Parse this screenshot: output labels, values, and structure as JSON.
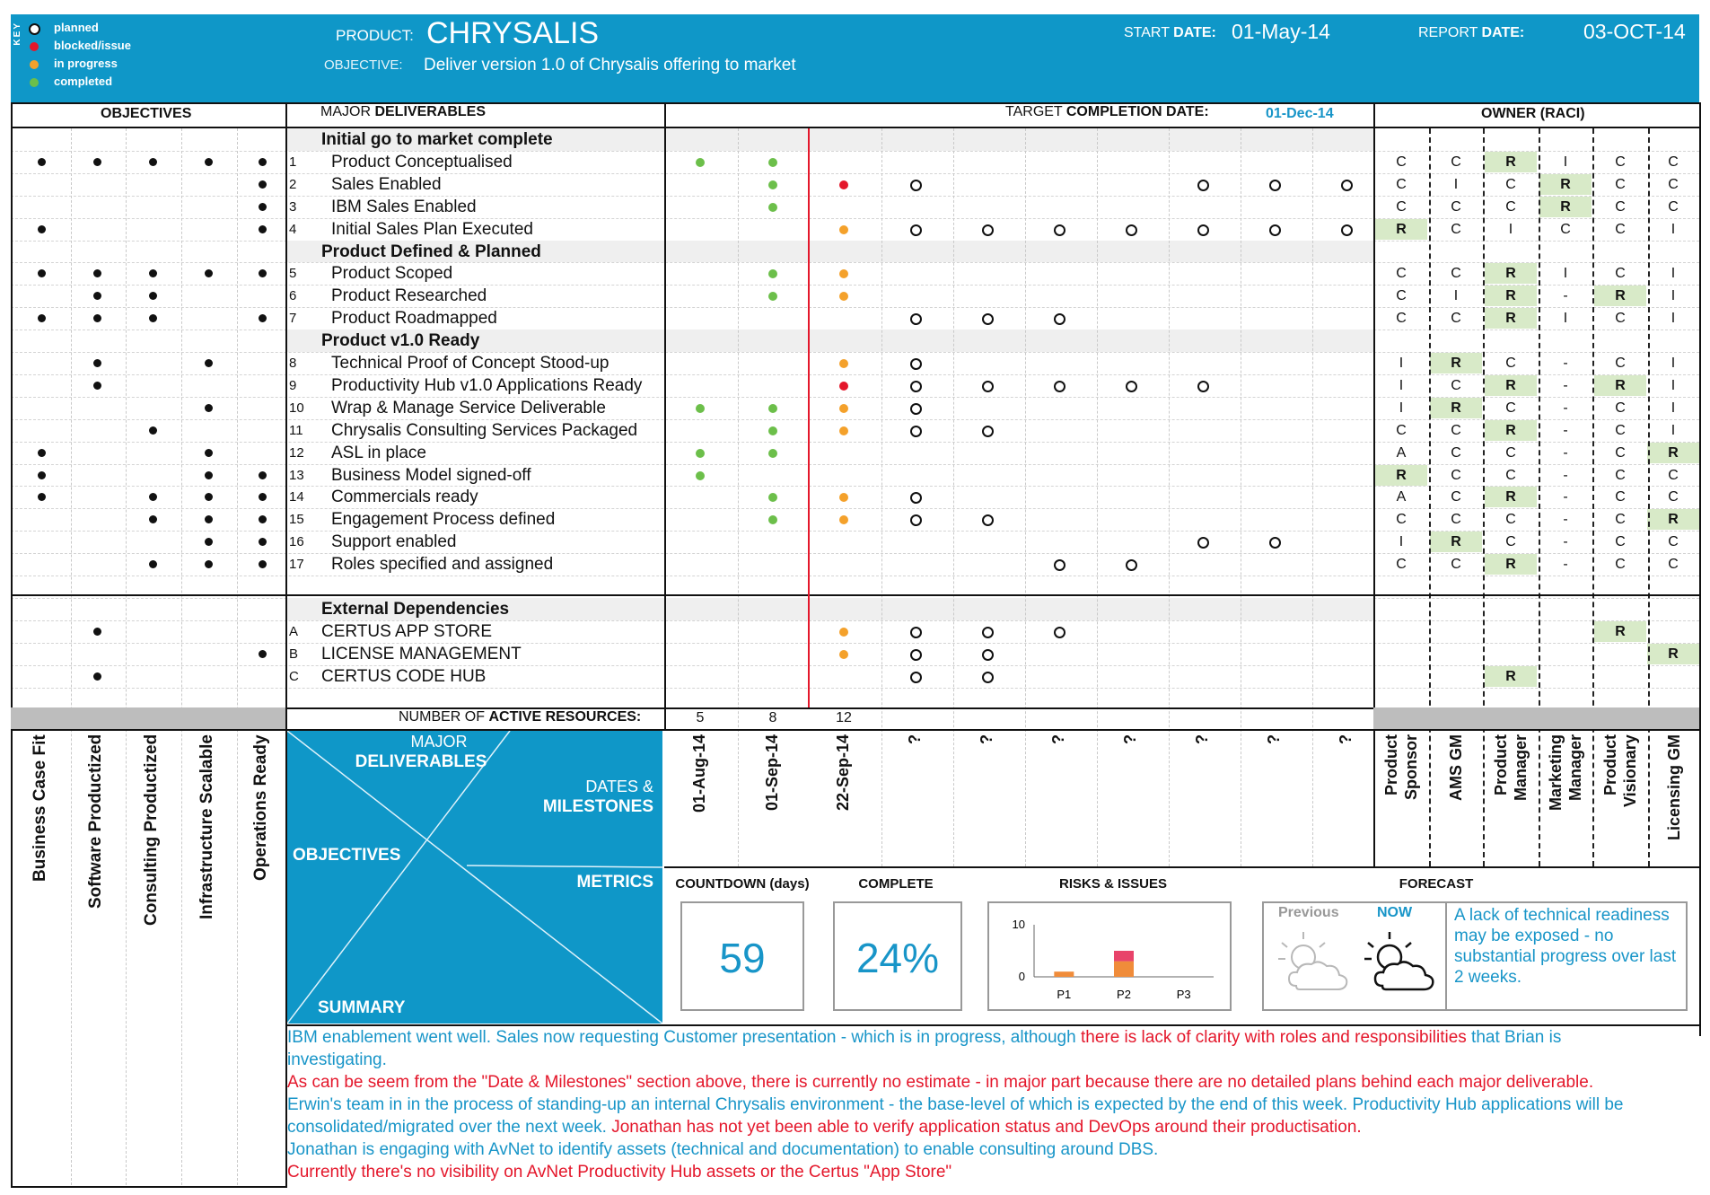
{
  "header": {
    "key_title": "KEY",
    "legend": [
      {
        "label": "planned",
        "kind": "ring"
      },
      {
        "label": "blocked/issue",
        "color": "#e4172b"
      },
      {
        "label": "in progress",
        "color": "#f4a12b"
      },
      {
        "label": "completed",
        "color": "#6cbf4a"
      }
    ],
    "product_label": "PRODUCT:",
    "product_name": "CHRYSALIS",
    "objective_label": "OBJECTIVE:",
    "objective_text": "Deliver version 1.0 of Chrysalis offering to market",
    "start_label_a": "START",
    "start_label_b": "DATE:",
    "start_date": "01-May-14",
    "report_label_a": "REPORT",
    "report_label_b": "DATE:",
    "report_date": "03-OCT-14"
  },
  "sections": {
    "objectives": "OBJECTIVES",
    "major_a": "MAJOR",
    "major_b": "DELIVERABLES",
    "target_a": "TARGET",
    "target_b": "COMPLETION DATE:",
    "target_date": "01-Dec-14",
    "owner": "OWNER (RACI)"
  },
  "colors": {
    "brand": "#0f97c8",
    "blocked": "#e4172b",
    "in_progress": "#f4a12b",
    "completed": "#6cbf4a",
    "raci_r_fill": "#d8eac8",
    "timeline_line": "#e4172b"
  },
  "rows": [
    {
      "type": "group",
      "label": "Initial go to market complete"
    },
    {
      "type": "item",
      "num": "1",
      "label": "Product Conceptualised",
      "obj": [
        1,
        1,
        1,
        1,
        1
      ],
      "ms": [
        "c",
        "c",
        "",
        "",
        "",
        "",
        "",
        "",
        ""
      ],
      "raci": [
        "C",
        "C",
        "R",
        "I",
        "C",
        "C"
      ]
    },
    {
      "type": "item",
      "num": "2",
      "label": "Sales Enabled",
      "obj": [
        0,
        0,
        0,
        0,
        1
      ],
      "ms": [
        "",
        "c",
        "b",
        "p",
        "",
        "",
        "",
        "p",
        "p",
        "p"
      ],
      "raci": [
        "C",
        "I",
        "C",
        "R",
        "C",
        "C"
      ]
    },
    {
      "type": "item",
      "num": "3",
      "label": "IBM Sales Enabled",
      "obj": [
        0,
        0,
        0,
        0,
        1
      ],
      "ms": [
        "",
        "c"
      ],
      "raci": [
        "C",
        "C",
        "C",
        "R",
        "C",
        "C"
      ]
    },
    {
      "type": "item",
      "num": "4",
      "label": "Initial Sales Plan Executed",
      "obj": [
        1,
        0,
        0,
        0,
        1
      ],
      "ms": [
        "",
        "",
        "i",
        "p",
        "p",
        "p",
        "p",
        "p",
        "p",
        "p"
      ],
      "raci": [
        "R",
        "C",
        "I",
        "C",
        "C",
        "I"
      ]
    },
    {
      "type": "group",
      "label": "Product Defined & Planned"
    },
    {
      "type": "item",
      "num": "5",
      "label": "Product Scoped",
      "obj": [
        1,
        1,
        1,
        1,
        1
      ],
      "ms": [
        "",
        "c",
        "i"
      ],
      "raci": [
        "C",
        "C",
        "R",
        "I",
        "C",
        "I"
      ]
    },
    {
      "type": "item",
      "num": "6",
      "label": "Product Researched",
      "obj": [
        0,
        1,
        1,
        0,
        0
      ],
      "ms": [
        "",
        "c",
        "i"
      ],
      "raci": [
        "C",
        "I",
        "R",
        "-",
        "R",
        "I"
      ]
    },
    {
      "type": "item",
      "num": "7",
      "label": "Product Roadmapped",
      "obj": [
        1,
        1,
        1,
        0,
        1
      ],
      "ms": [
        "",
        "",
        "",
        "p",
        "p",
        "p"
      ],
      "raci": [
        "C",
        "C",
        "R",
        "I",
        "C",
        "I"
      ]
    },
    {
      "type": "group",
      "label": "Product v1.0 Ready"
    },
    {
      "type": "item",
      "num": "8",
      "label": "Technical Proof of Concept Stood-up",
      "obj": [
        0,
        1,
        0,
        1,
        0
      ],
      "ms": [
        "",
        "",
        "i",
        "p"
      ],
      "raci": [
        "I",
        "R",
        "C",
        "-",
        "C",
        "I"
      ]
    },
    {
      "type": "item",
      "num": "9",
      "label": "Productivity Hub v1.0 Applications Ready",
      "obj": [
        0,
        1,
        0,
        0,
        0
      ],
      "ms": [
        "",
        "",
        "b",
        "p",
        "p",
        "p",
        "p",
        "p"
      ],
      "raci": [
        "I",
        "C",
        "R",
        "-",
        "R",
        "I"
      ]
    },
    {
      "type": "item",
      "num": "10",
      "label": "Wrap & Manage Service Deliverable",
      "obj": [
        0,
        0,
        0,
        1,
        0
      ],
      "ms": [
        "c",
        "c",
        "i",
        "p"
      ],
      "raci": [
        "I",
        "R",
        "C",
        "-",
        "C",
        "I"
      ]
    },
    {
      "type": "item",
      "num": "11",
      "label": "Chrysalis Consulting Services Packaged",
      "obj": [
        0,
        0,
        1,
        0,
        0
      ],
      "ms": [
        "",
        "c",
        "i",
        "p",
        "p"
      ],
      "raci": [
        "C",
        "C",
        "R",
        "-",
        "C",
        "I"
      ]
    },
    {
      "type": "item",
      "num": "12",
      "label": "ASL in place",
      "obj": [
        1,
        0,
        0,
        1,
        0
      ],
      "ms": [
        "c",
        "c"
      ],
      "raci": [
        "A",
        "C",
        "C",
        "-",
        "C",
        "R"
      ]
    },
    {
      "type": "item",
      "num": "13",
      "label": "Business Model signed-off",
      "obj": [
        1,
        0,
        0,
        1,
        1
      ],
      "ms": [
        "c"
      ],
      "raci": [
        "R",
        "C",
        "C",
        "-",
        "C",
        "C"
      ]
    },
    {
      "type": "item",
      "num": "14",
      "label": "Commercials ready",
      "obj": [
        1,
        0,
        1,
        1,
        1
      ],
      "ms": [
        "",
        "c",
        "i",
        "p"
      ],
      "raci": [
        "A",
        "C",
        "R",
        "-",
        "C",
        "C"
      ]
    },
    {
      "type": "item",
      "num": "15",
      "label": "Engagement Process defined",
      "obj": [
        0,
        0,
        1,
        1,
        1
      ],
      "ms": [
        "",
        "c",
        "i",
        "p",
        "p"
      ],
      "raci": [
        "C",
        "C",
        "C",
        "-",
        "C",
        "R"
      ]
    },
    {
      "type": "item",
      "num": "16",
      "label": "Support enabled",
      "obj": [
        0,
        0,
        0,
        1,
        1
      ],
      "ms": [
        "",
        "",
        "",
        "",
        "",
        "",
        "",
        "p",
        "p"
      ],
      "raci": [
        "I",
        "R",
        "C",
        "-",
        "C",
        "C"
      ]
    },
    {
      "type": "item",
      "num": "17",
      "label": "Roles specified and assigned",
      "obj": [
        0,
        0,
        1,
        1,
        1
      ],
      "ms": [
        "",
        "",
        "",
        "",
        "",
        "p",
        "p"
      ],
      "raci": [
        "C",
        "C",
        "R",
        "-",
        "C",
        "C"
      ]
    },
    {
      "type": "blank"
    },
    {
      "type": "group",
      "label": "External Dependencies"
    },
    {
      "type": "ext",
      "num": "A",
      "label": "CERTUS APP STORE",
      "obj": [
        0,
        1,
        0,
        0,
        0
      ],
      "ms": [
        "",
        "",
        "i",
        "p",
        "p",
        "p"
      ],
      "raci": [
        "",
        "",
        "",
        "",
        "R",
        ""
      ]
    },
    {
      "type": "ext",
      "num": "B",
      "label": "LICENSE MANAGEMENT",
      "obj": [
        0,
        0,
        0,
        0,
        1
      ],
      "ms": [
        "",
        "",
        "i",
        "p",
        "p"
      ],
      "raci": [
        "",
        "",
        "",
        "",
        "",
        "R"
      ]
    },
    {
      "type": "ext",
      "num": "C",
      "label": "CERTUS CODE HUB",
      "obj": [
        0,
        1,
        0,
        0,
        0
      ],
      "ms": [
        "",
        "",
        "",
        "p",
        "p"
      ],
      "raci": [
        "",
        "",
        "R",
        "",
        "",
        ""
      ]
    }
  ],
  "resources": {
    "label_a": "NUMBER OF",
    "label_b": "ACTIVE RESOURCES:",
    "values": [
      "5",
      "8",
      "12"
    ]
  },
  "objective_columns": [
    "Business Case Fit",
    "Software Productized",
    "Consulting Productized",
    "Infrastructure Scalable",
    "Operations Ready"
  ],
  "milestone_dates": [
    "01-Aug-14",
    "01-Sep-14",
    "22-Sep-14",
    "?",
    "?",
    "?",
    "?",
    "?",
    "?",
    "?"
  ],
  "raci_roles": [
    [
      "Product",
      "Sponsor"
    ],
    [
      "AMS GM"
    ],
    [
      "Product",
      "Manager"
    ],
    [
      "Marketing",
      "Manager"
    ],
    [
      "Product",
      "Visionary"
    ],
    [
      "Licensing GM"
    ]
  ],
  "guide": {
    "major_a": "MAJOR",
    "major_b": "DELIVERABLES",
    "dates_a": "DATES &",
    "dates_b": "MILESTONES",
    "objectives": "OBJECTIVES",
    "metrics": "METRICS",
    "summary": "SUMMARY"
  },
  "metrics": {
    "countdown_label": "COUNTDOWN (days)",
    "countdown_value": "59",
    "complete_label": "COMPLETE",
    "complete_value": "24%",
    "risks_label": "RISKS & ISSUES",
    "forecast_label": "FORECAST",
    "previous_label": "Previous",
    "now_label": "NOW",
    "forecast_text": "A lack of technical readiness may be exposed - no substantial progress over last 2 weeks."
  },
  "chart_data": {
    "type": "bar",
    "categories": [
      "P1",
      "P2",
      "P3"
    ],
    "series": [
      {
        "values": [
          1,
          3,
          0
        ],
        "color": "#f08c3a"
      },
      {
        "values": [
          0,
          2,
          0
        ],
        "color": "#e8436a"
      }
    ],
    "stacked": true,
    "ylim": [
      0,
      10
    ],
    "yticks": [
      "10",
      "0"
    ]
  },
  "summary": [
    {
      "parts": [
        {
          "t": "IBM enablement went well. Sales now requesting Customer presentation - which is in progress, although ",
          "c": "#1895c8"
        },
        {
          "t": "there is lack of clarity with roles and responsibilities",
          "c": "#e4172b"
        },
        {
          "t": " that Brian is",
          "c": "#1895c8"
        }
      ]
    },
    {
      "parts": [
        {
          "t": "investigating.",
          "c": "#1895c8"
        }
      ]
    },
    {
      "parts": [
        {
          "t": "As can be seem from the \"Date & Milestones\" section above, there is currently no estimate - in major part because there are no detailed plans behind each major deliverable.",
          "c": "#e4172b"
        }
      ]
    },
    {
      "parts": [
        {
          "t": "Erwin's team in in the process of standing-up an internal Chrysalis environment - the base-level of which is expected by the end of this week. Productivity Hub applications will be",
          "c": "#1895c8"
        }
      ]
    },
    {
      "parts": [
        {
          "t": "consolidated/migrated over the next week. ",
          "c": "#1895c8"
        },
        {
          "t": "Jonathan has not yet been able to verify application status and DevOps around their productisation.",
          "c": "#e4172b"
        }
      ]
    },
    {
      "parts": [
        {
          "t": "Jonathan is engaging with AvNet to identify assets (technical and documentation) to enable consulting around DBS.",
          "c": "#1895c8"
        }
      ]
    },
    {
      "parts": [
        {
          "t": "Currently there's no visibility on AvNet Productivity Hub assets or the Certus \"App Store\"",
          "c": "#e4172b"
        }
      ]
    }
  ]
}
